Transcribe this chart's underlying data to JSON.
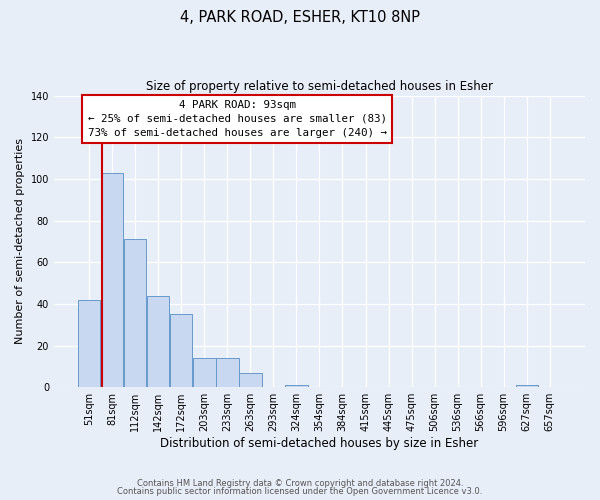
{
  "title": "4, PARK ROAD, ESHER, KT10 8NP",
  "subtitle": "Size of property relative to semi-detached houses in Esher",
  "xlabel": "Distribution of semi-detached houses by size in Esher",
  "ylabel": "Number of semi-detached properties",
  "bar_labels": [
    "51sqm",
    "81sqm",
    "112sqm",
    "142sqm",
    "172sqm",
    "203sqm",
    "233sqm",
    "263sqm",
    "293sqm",
    "324sqm",
    "354sqm",
    "384sqm",
    "415sqm",
    "445sqm",
    "475sqm",
    "506sqm",
    "536sqm",
    "566sqm",
    "596sqm",
    "627sqm",
    "657sqm"
  ],
  "bar_values": [
    42,
    103,
    71,
    44,
    35,
    14,
    14,
    7,
    0,
    1,
    0,
    0,
    0,
    0,
    0,
    0,
    0,
    0,
    0,
    1,
    0
  ],
  "bar_color": "#c8d8f0",
  "bar_edge_color": "#6699cc",
  "ylim": [
    0,
    140
  ],
  "yticks": [
    0,
    20,
    40,
    60,
    80,
    100,
    120,
    140
  ],
  "property_line_color": "#cc0000",
  "annotation_title": "4 PARK ROAD: 93sqm",
  "annotation_line1": "← 25% of semi-detached houses are smaller (83)",
  "annotation_line2": "73% of semi-detached houses are larger (240) →",
  "annotation_box_color": "#cc0000",
  "footer_line1": "Contains HM Land Registry data © Crown copyright and database right 2024.",
  "footer_line2": "Contains public sector information licensed under the Open Government Licence v3.0.",
  "bg_color": "#e8eef8",
  "plot_bg_color": "#e8eef8"
}
